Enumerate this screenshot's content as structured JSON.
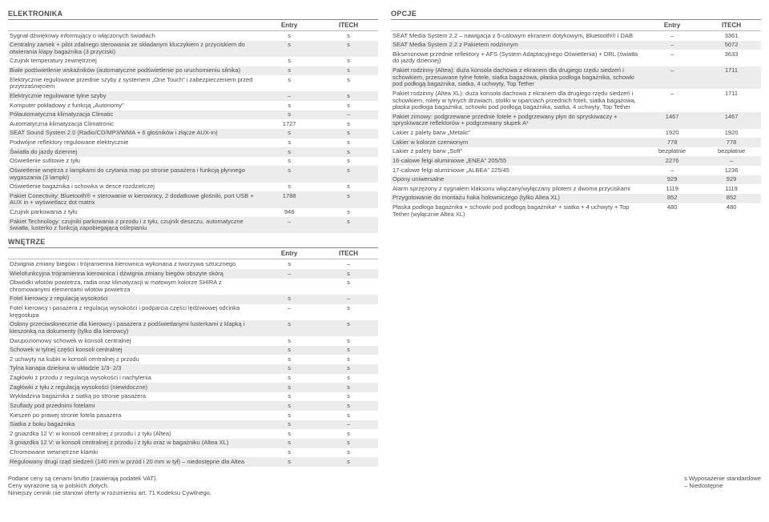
{
  "sections": {
    "elektronika": {
      "title": "ELEKTRONIKA",
      "cols": [
        "",
        "Entry",
        "ITECH"
      ],
      "rows": [
        [
          "Sygnał dźwiękowy informujący o włączonych światłach",
          "s",
          "s"
        ],
        [
          "Centralny zamek + pilot zdalnego sterowania ze składanym kluczykiem z przyciskiem do otwierania klapy bagażnika (3 przyciski)",
          "s",
          "s"
        ],
        [
          "Czujnik temperatury zewnętrznej",
          "s",
          "s"
        ],
        [
          "Białe podświetlenie wskaźników (automatyczne podświetlenie po uruchomieniu silnika)",
          "s",
          "s"
        ],
        [
          "Elektrycznie regulowane przednie szyby z systemem „One Touch” i zabezpieczeniem przed przytrzaśnięciem",
          "s",
          "s"
        ],
        [
          "Elektrycznie regulowane tylne szyby",
          "–",
          "s"
        ],
        [
          "Komputer pokładowy z funkcją „Autonomy”",
          "s",
          "s"
        ],
        [
          "Półautomatyczna klimatyzacja Climatic",
          "s",
          "–"
        ],
        [
          "Automatyczna klimatyzacja Climatronic",
          "1727",
          "s"
        ],
        [
          "SEAT Sound System 2.0 (Radio/CD/MP3/WMA + 6 głośników i złącze AUX-in)",
          "s",
          "s"
        ],
        [
          "Podwójne reflektory regulowane elektrycznie",
          "s",
          "s"
        ],
        [
          "Światła do jazdy dziennej",
          "s",
          "s"
        ],
        [
          "Oświetlenie sufitowe z tyłu",
          "s",
          "s"
        ],
        [
          "Oświetlenie wnętrza z lampkami do czytania map po stronie pasażera i funkcją płynnego wygaszania (3 lampki)",
          "s",
          "s"
        ],
        [
          "Oświetlenie bagażnika i schowka w desce rozdzielczej",
          "s",
          "s"
        ],
        [
          "Pakiet Conectivity: Bluetooth® + sterowanie w kierownicy, 2 dodatkowe głośniki, port USB + AUX in + wyświetlacz dot matrix",
          "1788",
          "s"
        ],
        [
          "Czujnik parkowania z tyłu",
          "948",
          "s"
        ],
        [
          "Pakiet Technology: czujniki parkowania z przodu i z tyłu, czujnik deszczu, automatyczne światła, lusterko z funkcją zapobiegającą oślepianiu",
          "–",
          "s"
        ]
      ]
    },
    "wnetrze": {
      "title": "WNĘTRZE",
      "cols": [
        "",
        "Entry",
        "ITECH"
      ],
      "rows": [
        [
          "Dźwignia zmiany biegów i trójramienna kierownica wykonana z tworzywa sztucznego",
          "s",
          "–"
        ],
        [
          "Wielofunkcyjna trójramienna kierownica i dźwignia zmiany biegów obszyte skórą",
          "–",
          "s"
        ],
        [
          "Obwódki wlotów powietrza, radia oraz klimatyzacji w matowym kolorze SHIRA z chromowanymi elementami wlotów powietrza",
          "",
          "s"
        ],
        [
          "Fotel kierowcy z regulacją wysokości",
          "s",
          "–"
        ],
        [
          "Fotel kierowcy i pasażera z regulacją wysokości i podparcia części lędźwiowej odcinka kręgosłupa",
          "–",
          "s"
        ],
        [
          "Osłony przeciwsłoneczne dla kierowcy i pasażera z podświetlanymi lusterkami z klapką i kieszonką na dokumenty (tylko dla kierowcy)",
          "s",
          "s"
        ],
        [
          "Dwupoziomowy schowek w konsoli centralnej",
          "s",
          "s"
        ],
        [
          "Schowek w tylnej części konsoli centralnej",
          "s",
          "s"
        ],
        [
          "2 uchwyty na kubki w konsoli centralnej z przodu",
          "s",
          "s"
        ],
        [
          "Tylna kanapa dzielona w układzie 1/3- 2/3",
          "s",
          "s"
        ],
        [
          "Zagłówki z przodu z regulacją wysokości i nachylenia",
          "s",
          "s"
        ],
        [
          "Zagłówki z tyłu z regulacją wysokości (niewidoczne)",
          "s",
          "s"
        ],
        [
          "Wykładzina bagażnika z siatką po stronie pasażera",
          "s",
          "s"
        ],
        [
          "Szuflady pod przednimi fotelami",
          "s",
          "s"
        ],
        [
          "Kieszeń po prawej stronie fotela pasażera",
          "s",
          "s"
        ],
        [
          "Siatka z boku bagażnika",
          "s",
          "–"
        ],
        [
          "2 gniazdka 12 V: w konsoli centralnej z przodu i z tyłu (Altea)",
          "s",
          "s"
        ],
        [
          "3 gniazdka 12 V: w konsoli centralnej z przodu i z tyłu oraz w bagażniku (Altea XL)",
          "s",
          "s"
        ],
        [
          "Chromowane wewnętrzne klamki",
          "s",
          "s"
        ],
        [
          "Regulowany drugi rząd siedzeń (140 mm w przód i 20 mm w tył) – niedostępne dla Altea",
          "s",
          "s"
        ]
      ]
    },
    "opcje": {
      "title": "OPCJE",
      "cols": [
        "",
        "Entry",
        "ITECH"
      ],
      "rows": [
        [
          "SEAT Media System 2.2 – nawigacja z 5-calowym ekranem dotykowym, Bluetooth® i DAB",
          "–",
          "3361"
        ],
        [
          "SEAT Media System 2.2 z Pakietem rodzinnym",
          "–",
          "5072"
        ],
        [
          "Biksenonowe przednie reflektory + AFS (System Adaptacyjnego Oświetlenia) + DRL (światła do jazdy dziennej)",
          "–",
          "3633"
        ],
        [
          "Pakiet rodzinny (Altea): duża konsola dachowa z ekranem dla drugiego rzędu siedzeń i schowkiem, przesuwane tylne fotele, siatka bagażowa, płaska podłoga bagażnika, schowki pod podłogą bagażnika, siatka, 4 uchwyty, Top Tether",
          "–",
          "1711"
        ],
        [
          "Pakiet rodzinny (Altea XL): duża konsola dachowa z ekranem dla drugiego rzędu siedzeń i schowkiem, rolety w tylnych drzwiach, stoliki w oparciach przednich foteli, siatka bagażowa, płaska podłoga bagażnika, schowki pod podłogą bagażnika, siatka, 4 uchwyty, Top Tether",
          "–",
          "1711"
        ],
        [
          "Pakiet zimowy: podgrzewane przednie fotele + podgrzewany płyn do spryskiwaczy + spryskiwacze reflektorów + podgrzewany słupek A¹",
          "1467",
          "1467"
        ],
        [
          "Lakier z palety barw „Metalic”",
          "1920",
          "1920"
        ],
        [
          "Lakier w kolorze czerwonym",
          "778",
          "778"
        ],
        [
          "Lakier z palety barw „Soft”",
          "bezpłatnie",
          "bezpłatnie"
        ],
        [
          "16-calowe felgi aluminiowe „ENEA” 205/55",
          "2276",
          "–"
        ],
        [
          "17-calowe felgi aluminiowe „ALBEA” 225/45",
          "–",
          "1236"
        ],
        [
          "Opony uniwersalne",
          "929",
          "929"
        ],
        [
          "Alarm sprzężony z sygnałem klaksonu włączany/wyłączany pilotem z dwoma przyciskami",
          "1119",
          "1119"
        ],
        [
          "Przygotowanie do montażu haka holowniczego (tylko Altea XL)",
          "852",
          "852"
        ],
        [
          "Płaska podłoga bagażnika + schowki pod podłogą bagażnika¹ + siatka + 4 uchwyty + Top Tether (wyłącznie Altea XL)",
          "480",
          "480"
        ]
      ]
    }
  },
  "footer": {
    "left": [
      "Podane ceny są cenami brutto (zawierają podatek VAT).",
      "Ceny wyrażone są w polskich złotych.",
      "Niniejszy cennik nie stanowi oferty w rozumieniu art. 71 Kodeksu Cywilnego."
    ],
    "right": [
      "s  Wyposażenie standardowe",
      "–  Niedostępne"
    ]
  }
}
